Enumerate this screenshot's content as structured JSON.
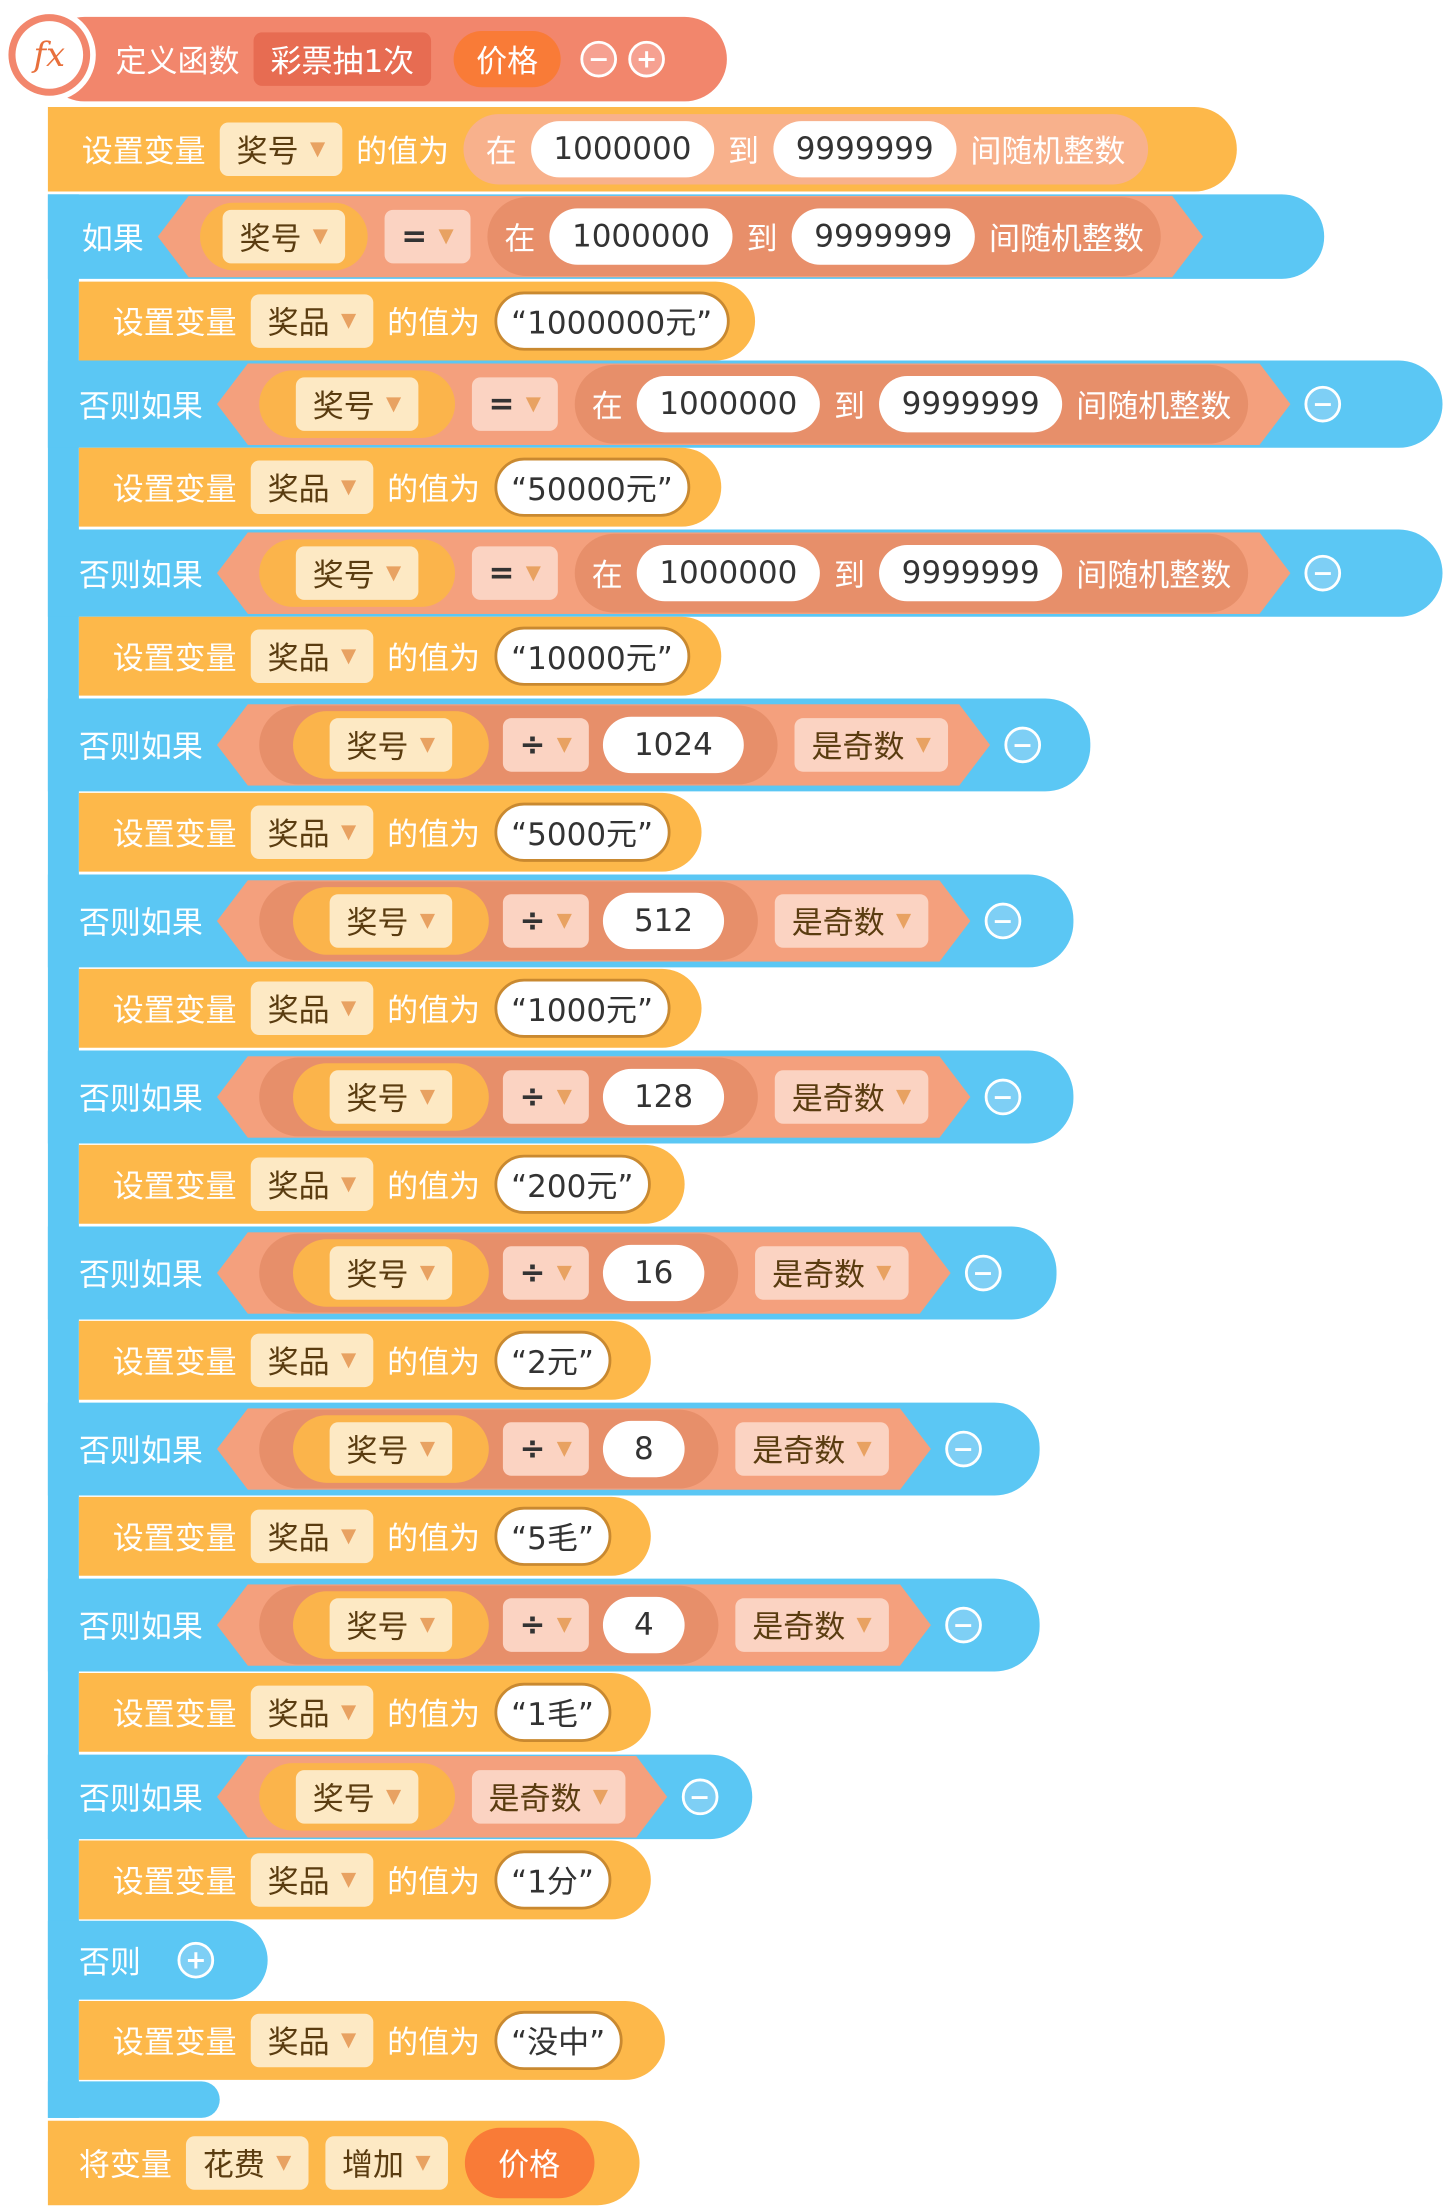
{
  "define": {
    "label": "定义函数",
    "name": "彩票抽1次",
    "param": "价格",
    "minus": "−",
    "plus": "+"
  },
  "set1": {
    "label": "设置变量",
    "var": "奖号",
    "value_label": "的值为",
    "in": "在",
    "from": "1000000",
    "to_label": "到",
    "to": "9999999",
    "rand": "间随机整数"
  },
  "if": {
    "label": "如果",
    "var": "奖号",
    "op": "=",
    "in": "在",
    "from": "1000000",
    "to_label": "到",
    "to": "9999999",
    "rand": "间随机整数"
  },
  "elseif_label": "否则如果",
  "else_label": "否则",
  "setvar_label": "设置变量",
  "prize_var": "奖品",
  "value_label": "的值为",
  "odd_label": "是奇数",
  "divide_op": "÷",
  "equal_op": "=",
  "divisors": [
    "1024",
    "512",
    "128",
    "16",
    "8",
    "4"
  ],
  "prizes": [
    "“1000000元”",
    "“50000元”",
    "“10000元”",
    "“5000元”",
    "“1000元”",
    "“200元”",
    "“2元”",
    "“5毛”",
    "“1毛”",
    "“1分”",
    "“没中”"
  ],
  "final": {
    "label": "将变量",
    "var": "花费",
    "op": "增加",
    "value": "价格"
  },
  "minus": "−",
  "plus": "+",
  "colors": {
    "function": "#f2866c",
    "variable": "#fdb84a",
    "control": "#5bc7f4",
    "operator": "#f4a07d"
  }
}
